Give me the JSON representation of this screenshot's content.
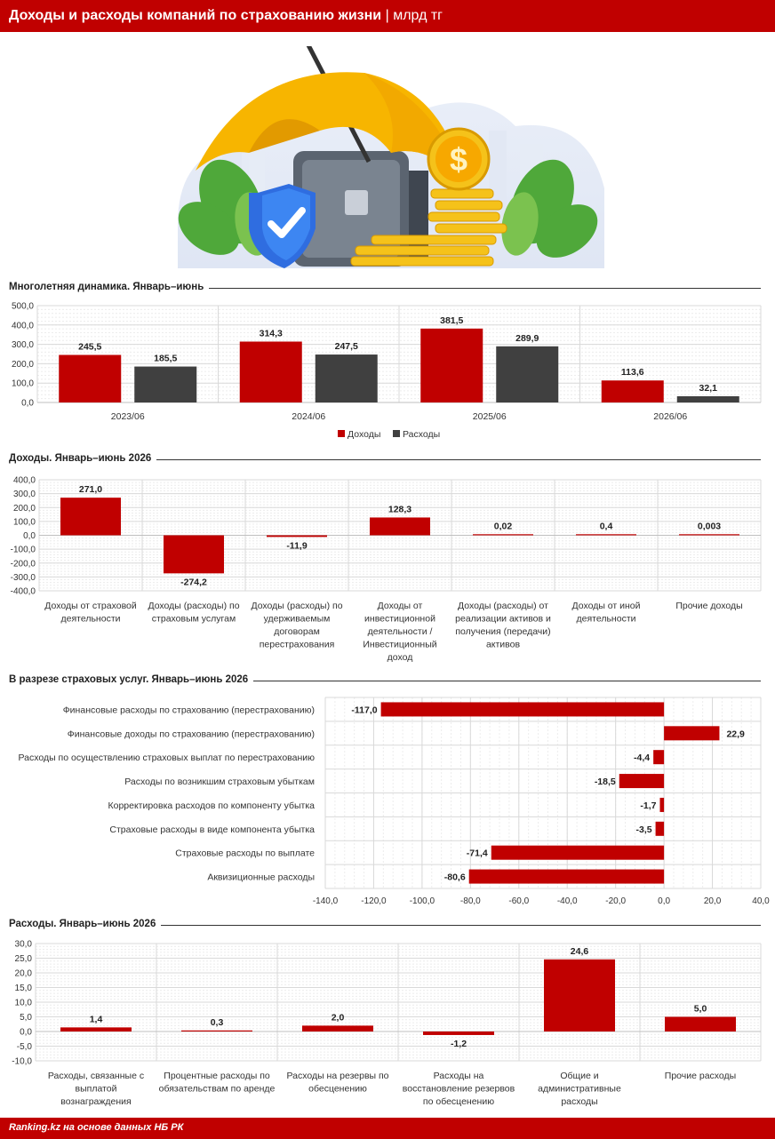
{
  "header": {
    "title": "Доходы и расходы компаний по страхованию жизни",
    "separator": "|",
    "unit": "млрд тг"
  },
  "footer": {
    "source": "Ranking.kz на основе данных НБ РК"
  },
  "colors": {
    "red": "#c00000",
    "dark": "#404040",
    "grid": "#d9d9d9"
  },
  "chart_data": [
    {
      "id": "c1",
      "type": "bar",
      "title": "Многолетняя динамика. Январь–июнь",
      "categories": [
        "2023/06",
        "2024/06",
        "2025/06",
        "2026/06"
      ],
      "series": [
        {
          "name": "Доходы",
          "values": [
            245.5,
            314.3,
            381.5,
            113.6
          ],
          "labels": [
            "245,5",
            "314,3",
            "381,5",
            "113,6"
          ]
        },
        {
          "name": "Расходы",
          "values": [
            185.5,
            247.5,
            289.9,
            32.1
          ],
          "labels": [
            "185,5",
            "247,5",
            "289,9",
            "32,1"
          ]
        }
      ],
      "ylim": [
        0,
        500
      ],
      "yticks": [
        "0,0",
        "100,0",
        "200,0",
        "300,0",
        "400,0",
        "500,0"
      ],
      "legend": "bottom",
      "grid": true
    },
    {
      "id": "c2",
      "type": "bar",
      "title": "Доходы. Январь–июнь 2026",
      "categories": [
        [
          "Доходы от страховой",
          "деятельности"
        ],
        [
          "Доходы (расходы) по",
          "страховым услугам"
        ],
        [
          "Доходы (расходы) по",
          "удерживаемым",
          "договорам",
          "перестрахования"
        ],
        [
          "Доходы от",
          "инвестиционной",
          "деятельности /",
          "Инвестиционный",
          "доход"
        ],
        [
          "Доходы (расходы) от",
          "реализации активов и",
          "получения (передачи)",
          "активов"
        ],
        [
          "Доходы от иной",
          "деятельности"
        ],
        [
          "Прочие доходы"
        ]
      ],
      "values": [
        271.0,
        -274.2,
        -11.9,
        128.3,
        0.02,
        0.4,
        0.003
      ],
      "labels": [
        "271,0",
        "-274,2",
        "-11,9",
        "128,3",
        "0,02",
        "0,4",
        "0,003"
      ],
      "ylim": [
        -400,
        400
      ],
      "yticks": [
        "-400,0",
        "-300,0",
        "-200,0",
        "-100,0",
        "0,0",
        "100,0",
        "200,0",
        "300,0",
        "400,0"
      ],
      "grid": true
    },
    {
      "id": "c3",
      "type": "bar",
      "orientation": "horizontal",
      "title": "В разрезе страховых услуг. Январь–июнь 2026",
      "categories": [
        "Финансовые расходы по страхованию (перестрахованию)",
        "Финансовые доходы по страхованию (перестрахованию)",
        "Расходы по осуществлению страховых выплат по перестрахованию",
        "Расходы по возникшим страховым убыткам",
        "Корректировка расходов по компоненту убытка",
        "Страховые расходы в виде компонента убытка",
        "Страховые расходы по выплате",
        "Аквизиционные расходы"
      ],
      "values": [
        -117.0,
        22.9,
        -4.4,
        -18.5,
        -1.7,
        -3.5,
        -71.4,
        -80.6
      ],
      "labels": [
        "-117,0",
        "22,9",
        "-4,4",
        "-18,5",
        "-1,7",
        "-3,5",
        "-71,4",
        "-80,6"
      ],
      "xlim": [
        -140,
        40
      ],
      "xticks": [
        "-140,0",
        "-120,0",
        "-100,0",
        "-80,0",
        "-60,0",
        "-40,0",
        "-20,0",
        "0,0",
        "20,0",
        "40,0"
      ],
      "grid": true
    },
    {
      "id": "c4",
      "type": "bar",
      "title": "Расходы. Январь–июнь 2026",
      "categories": [
        [
          "Расходы, связанные с",
          "выплатой",
          "вознаграждения"
        ],
        [
          "Процентные расходы по",
          "обязательствам по аренде"
        ],
        [
          "Расходы на резервы по",
          "обесценению"
        ],
        [
          "Расходы на",
          "восстановление резервов",
          "по обесценению"
        ],
        [
          "Общие и",
          "административные",
          "расходы"
        ],
        [
          "Прочие расходы"
        ]
      ],
      "values": [
        1.4,
        0.3,
        2.0,
        -1.2,
        24.6,
        5.0
      ],
      "labels": [
        "1,4",
        "0,3",
        "2,0",
        "-1,2",
        "24,6",
        "5,0"
      ],
      "ylim": [
        -10,
        30
      ],
      "yticks": [
        "-10,0",
        "-5,0",
        "0,0",
        "5,0",
        "10,0",
        "15,0",
        "20,0",
        "25,0",
        "30,0"
      ],
      "grid": true
    }
  ]
}
